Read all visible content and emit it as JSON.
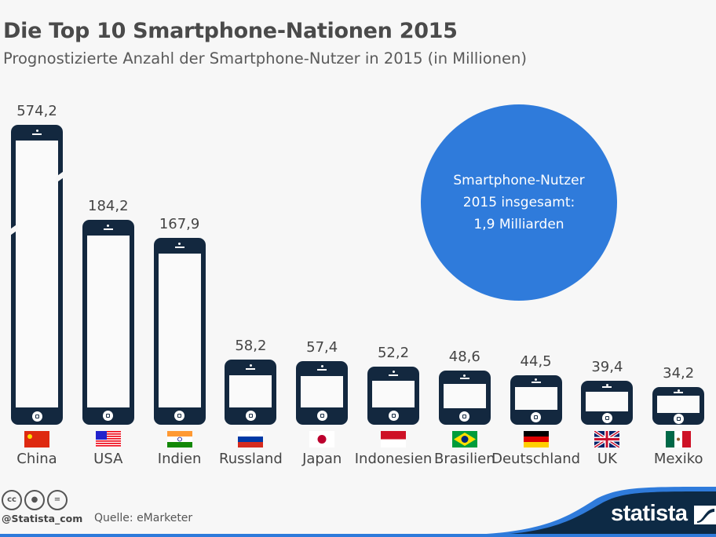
{
  "title": "Die Top 10 Smartphone-Nationen 2015",
  "subtitle": "Prognostizierte Anzahl der Smartphone-Nutzer in 2015 (in Millionen)",
  "chart_data": {
    "type": "bar",
    "title": "Die Top 10 Smartphone-Nationen 2015",
    "subtitle": "Prognostizierte Anzahl der Smartphone-Nutzer in 2015 (in Millionen)",
    "categories": [
      "China",
      "USA",
      "Indien",
      "Russland",
      "Japan",
      "Indonesien",
      "Brasilien",
      "Deutschland",
      "UK",
      "Mexiko"
    ],
    "values": [
      574.2,
      184.2,
      167.9,
      58.2,
      57.4,
      52.2,
      48.6,
      44.5,
      39.4,
      34.2
    ],
    "value_labels": [
      "574,2",
      "184,2",
      "167,9",
      "58,2",
      "57,4",
      "52,2",
      "48,6",
      "44,5",
      "39,4",
      "34,2"
    ],
    "broken_bar": "China",
    "bar_style": "smartphone icons",
    "bar_color": "#13283f",
    "flags": [
      "cn",
      "us",
      "in",
      "ru",
      "jp",
      "id",
      "br",
      "de",
      "gb",
      "mx"
    ],
    "grid": false
  },
  "callout": {
    "line1": "Smartphone-Nutzer",
    "line2": "2015 insgesamt:",
    "line3": "1,9 Milliarden",
    "color": "#2f7bdb"
  },
  "footer": {
    "license_icons": [
      "cc-icon",
      "by-icon",
      "nd-icon"
    ],
    "cc_text": "cc",
    "handle": "@Statista_com",
    "source": "Quelle: eMarketer",
    "logo": "statista"
  }
}
